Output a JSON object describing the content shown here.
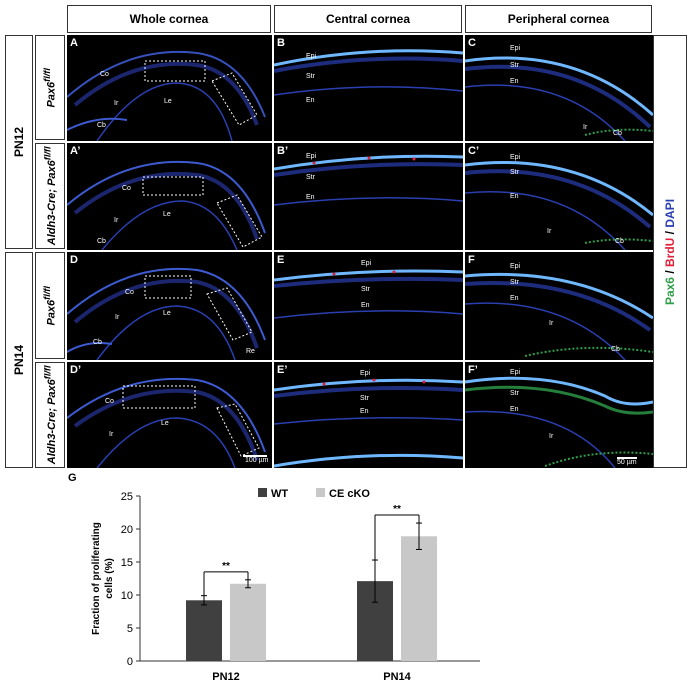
{
  "headers": {
    "whole": "Whole cornea",
    "central": "Central cornea",
    "peripheral": "Peripheral cornea"
  },
  "ages": [
    "PN12",
    "PN14"
  ],
  "genotypes": {
    "ctrl_prefix": "Pax6",
    "ctrl_sup": "fl/fl",
    "cko_prefix": "Aldh3-Cre; Pax6",
    "cko_sup": "fl/fl"
  },
  "stain_legend": {
    "pax6": "Pax6",
    "sep1": " / ",
    "brdu": "BrdU",
    "sep2": " / ",
    "dapi": "DAPI"
  },
  "colors": {
    "pax6": "#2e9e4a",
    "brdu": "#e0203a",
    "dapi": "#2a3fb0",
    "wt": "#404040",
    "ko": "#c8c8c8"
  },
  "panels": {
    "A": "A",
    "B": "B",
    "C": "C",
    "A2": "A’",
    "B2": "B’",
    "C2": "C’",
    "D": "D",
    "E": "E",
    "F": "F",
    "D2": "D’",
    "E2": "E’",
    "F2": "F’"
  },
  "tissue": {
    "epi": "Epi",
    "str": "Str",
    "en": "En",
    "co": "Co",
    "le": "Le",
    "ir": "Ir",
    "cb": "Cb",
    "re": "Re"
  },
  "scalebars": {
    "whole": "100 µm",
    "periph": "50 µm"
  },
  "chart_label": "G",
  "chart_data": {
    "type": "bar",
    "categories": [
      "PN12",
      "PN14"
    ],
    "series": [
      {
        "name": "WT",
        "values": [
          9.2,
          12.1
        ],
        "errors": [
          0.7,
          3.2
        ]
      },
      {
        "name": "CE cKO",
        "values": [
          11.7,
          18.9
        ],
        "errors": [
          0.6,
          2.0
        ]
      }
    ],
    "ylabel": "Fraction of proliferating cells (%)",
    "ylabel_line1": "Fraction of proliferating",
    "ylabel_line2": "cells (%)",
    "ylim": [
      0,
      25
    ],
    "yticks": [
      0,
      5,
      10,
      15,
      20,
      25
    ],
    "significance": [
      "**",
      "**"
    ],
    "legend_position": "top-center"
  }
}
